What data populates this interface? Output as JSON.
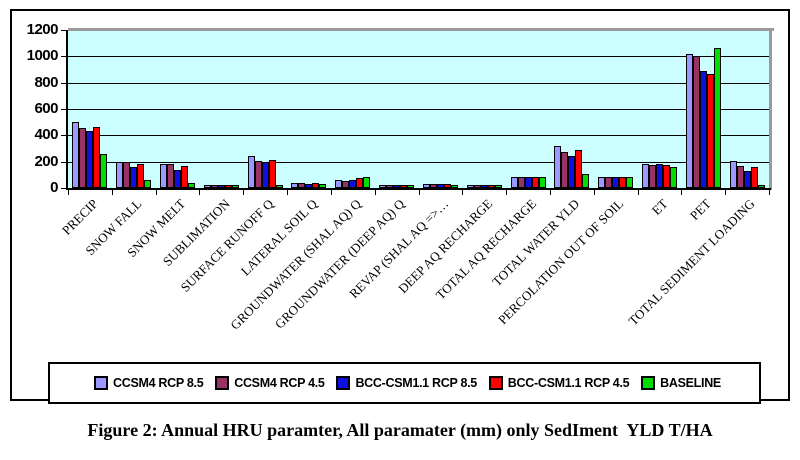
{
  "figure": {
    "caption": "Figure 2: Annual HRU paramter, All paramater (mm) only SedIment  YLD T/HA"
  },
  "chart_data": {
    "type": "bar",
    "title": "",
    "xlabel": "",
    "ylabel": "",
    "ylim": [
      0,
      1200
    ],
    "ytick_step": 200,
    "yticks": [
      0,
      200,
      400,
      600,
      800,
      1000,
      1200
    ],
    "grid": true,
    "plot_bg_color": "#ccffff",
    "legend_position": "bottom",
    "categories": [
      "PRECIP",
      "SNOW FALL",
      "SNOW MELT",
      "SUBLIMATION",
      "SURFACE RUNOFF Q",
      "LATERAL SOIL Q",
      "GROUNDWATER (SHAL AQ) Q",
      "GROUNDWATER (DEEP AQ) Q",
      "REVAP (SHAL AQ =>…",
      "DEEP AQ RECHARGE",
      "TOTAL AQ RECHARGE",
      "TOTAL WATER YLD",
      "PERCOLATION OUT OF SOIL",
      "ET",
      "PET",
      "TOTAL SEDIMENT LOADING"
    ],
    "series": [
      {
        "name": "CCSM4 RCP 8.5",
        "color": "#9999ff",
        "values": [
          485,
          180,
          170,
          2,
          225,
          22,
          45,
          2,
          15,
          3,
          72,
          305,
          70,
          165,
          1000,
          190
        ]
      },
      {
        "name": "CCSM4 RCP 4.5",
        "color": "#993366",
        "values": [
          440,
          185,
          170,
          2,
          190,
          20,
          35,
          2,
          13,
          3,
          68,
          260,
          65,
          158,
          985,
          155
        ]
      },
      {
        "name": "BCC-CSM1.1 RCP 8.5",
        "color": "#0f0fe0",
        "values": [
          420,
          145,
          125,
          2,
          180,
          18,
          45,
          2,
          12,
          3,
          72,
          230,
          70,
          165,
          875,
          115
        ]
      },
      {
        "name": "BCC-CSM1.1 RCP 4.5",
        "color": "#ff0000",
        "values": [
          445,
          165,
          155,
          2,
          195,
          20,
          58,
          2,
          13,
          3,
          70,
          270,
          68,
          158,
          850,
          145
        ]
      },
      {
        "name": "BASELINE",
        "color": "#00dd00",
        "values": [
          245,
          45,
          25,
          8,
          10,
          15,
          68,
          3,
          10,
          5,
          70,
          90,
          66,
          148,
          1045,
          5
        ]
      }
    ]
  }
}
